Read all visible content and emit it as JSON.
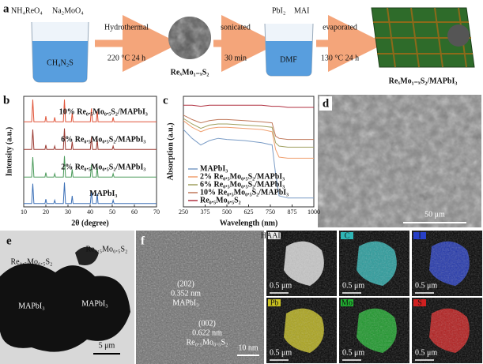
{
  "panel_a": {
    "letter": "a",
    "precursors": [
      "NH₄ReO₄",
      "Na₂MoO₄"
    ],
    "solution_1": "CH₄N₂S",
    "step_1": [
      "Hydrothermal",
      "220 °C 24 h"
    ],
    "product_1": "ReₓMo₁₋ₓS₂",
    "step_2": [
      "sonicated",
      "30 min"
    ],
    "reagents": [
      "PbI₂",
      "MAI"
    ],
    "solution_2": "DMF",
    "step_3": [
      "evaporated",
      "130 °C 24 h"
    ],
    "product_2": "ReₓMo₁₋ₓS₂/MAPbI₃"
  },
  "chart_data": [
    {
      "type": "line",
      "label": "b",
      "xlabel": "2θ (degree)",
      "ylabel": "Intensity (a.u.)",
      "x": [
        10,
        13.6,
        14.1,
        14.6,
        19.6,
        20.0,
        20.4,
        23.6,
        24.0,
        24.4,
        27.9,
        28.4,
        28.9,
        31.5,
        31.9,
        32.3,
        40.1,
        40.6,
        41.1,
        42.8,
        43.2,
        43.6,
        50.0,
        50.4,
        50.8,
        70
      ],
      "xlim": [
        10,
        70
      ],
      "xticks": [
        10,
        20,
        30,
        40,
        50,
        60,
        70
      ],
      "ylim": [
        0,
        100
      ],
      "series": [
        {
          "name": "10% Re₀.₅Mo₀.₅S₂/MAPbI₃",
          "color": "#e0553a",
          "values": [
            77,
            77,
            97,
            77,
            77,
            82,
            77,
            77,
            81,
            77,
            77,
            97,
            77,
            77,
            85,
            77,
            77,
            89,
            77,
            77,
            87,
            77,
            77,
            81,
            77,
            77
          ]
        },
        {
          "name": "6% Re₀.₅Mo₀.₅S₂/MAPbI₃",
          "color": "#9b3a32",
          "values": [
            52,
            52,
            70,
            52,
            52,
            56,
            52,
            52,
            55,
            52,
            52,
            71,
            52,
            52,
            59,
            52,
            52,
            63,
            52,
            52,
            61,
            52,
            52,
            55,
            52,
            52
          ]
        },
        {
          "name": "2% Re₀.₅Mo₀.₅S₂/MAPbI₃",
          "color": "#4a9a5a",
          "values": [
            27,
            27,
            45,
            27,
            27,
            31,
            27,
            27,
            30,
            27,
            27,
            46,
            27,
            27,
            34,
            27,
            27,
            38,
            27,
            27,
            36,
            27,
            27,
            30,
            27,
            27
          ]
        },
        {
          "name": "MAPbI₃",
          "color": "#3b6fb6",
          "values": [
            3,
            3,
            21,
            3,
            3,
            7,
            3,
            3,
            6,
            3,
            3,
            22,
            3,
            3,
            10,
            3,
            3,
            14,
            3,
            3,
            12,
            3,
            3,
            6,
            3,
            3
          ]
        }
      ]
    },
    {
      "type": "line",
      "label": "c",
      "xlabel": "Wavelength (nm)",
      "ylabel": "Absorption (a.u.)",
      "x": [
        250,
        300,
        350,
        400,
        450,
        500,
        600,
        700,
        760,
        780,
        800,
        850,
        1000
      ],
      "xlim": [
        250,
        1000
      ],
      "xticks": [
        250,
        375,
        500,
        625,
        750,
        875,
        1000
      ],
      "ylim": [
        0,
        100
      ],
      "legend": "lower left",
      "series": [
        {
          "name": "MAPbI₃",
          "color": "#7a9cc6",
          "values": [
            70,
            62,
            56,
            60,
            62,
            61,
            60,
            58,
            56,
            30,
            10,
            8,
            8
          ]
        },
        {
          "name": "2% Re₀.₅Mo₀.₅S₂/MAPbI₃",
          "color": "#f0a070",
          "values": [
            78,
            72,
            68,
            71,
            72,
            72,
            71,
            70,
            68,
            52,
            45,
            44,
            44
          ]
        },
        {
          "name": "6% Re₀.₅Mo₀.₅S₂/MAPbI₃",
          "color": "#a0a060",
          "values": [
            80,
            75,
            71,
            74,
            75,
            75,
            74,
            73,
            72,
            58,
            55,
            54,
            54
          ]
        },
        {
          "name": "10% Re₀.₅Mo₀.₅S₂/MAPbI₃",
          "color": "#c0785a",
          "values": [
            83,
            79,
            76,
            78,
            79,
            79,
            78,
            77,
            76,
            64,
            62,
            61,
            61
          ]
        },
        {
          "name": "Re₀.₅Mo₀.₅S₂",
          "color": "#b03040",
          "values": [
            92,
            92,
            91,
            92,
            92,
            92,
            92,
            92,
            91,
            91,
            91,
            90,
            90
          ]
        }
      ]
    }
  ],
  "panel_d": {
    "letter": "d",
    "scale_bar": "50 μm"
  },
  "panel_e": {
    "letter": "e",
    "labels": [
      "Re₀.₅Mo₀.₅S₂",
      "Re₀.₅Mo₀.₅S₂",
      "MAPbI₃",
      "MAPbI₃"
    ],
    "scale_bar": "5 μm"
  },
  "panel_f": {
    "letter": "f",
    "lattice_1": [
      "(202)",
      "0.352 nm",
      "MAPbI₃"
    ],
    "lattice_2": [
      "(002)",
      "0.622 nm",
      "Re₀.₅Mo₀.₅S₂"
    ],
    "scale_bar": "10 nm"
  },
  "panel_g": {
    "letter": "g",
    "maps": [
      {
        "element": "HAADF",
        "color": "#e8e8e8",
        "scale_bar": "0.5 μm"
      },
      {
        "element": "C",
        "color": "#2fb5b5",
        "scale_bar": "0.5 μm"
      },
      {
        "element": "I",
        "color": "#2840c8",
        "scale_bar": "0.5 μm"
      },
      {
        "element": "Pb",
        "color": "#c8c020",
        "scale_bar": "0.5 μm"
      },
      {
        "element": "Mo",
        "color": "#20b030",
        "scale_bar": "0.5 μm"
      },
      {
        "element": "S",
        "color": "#d02020",
        "scale_bar": "0.5 μm"
      }
    ]
  }
}
